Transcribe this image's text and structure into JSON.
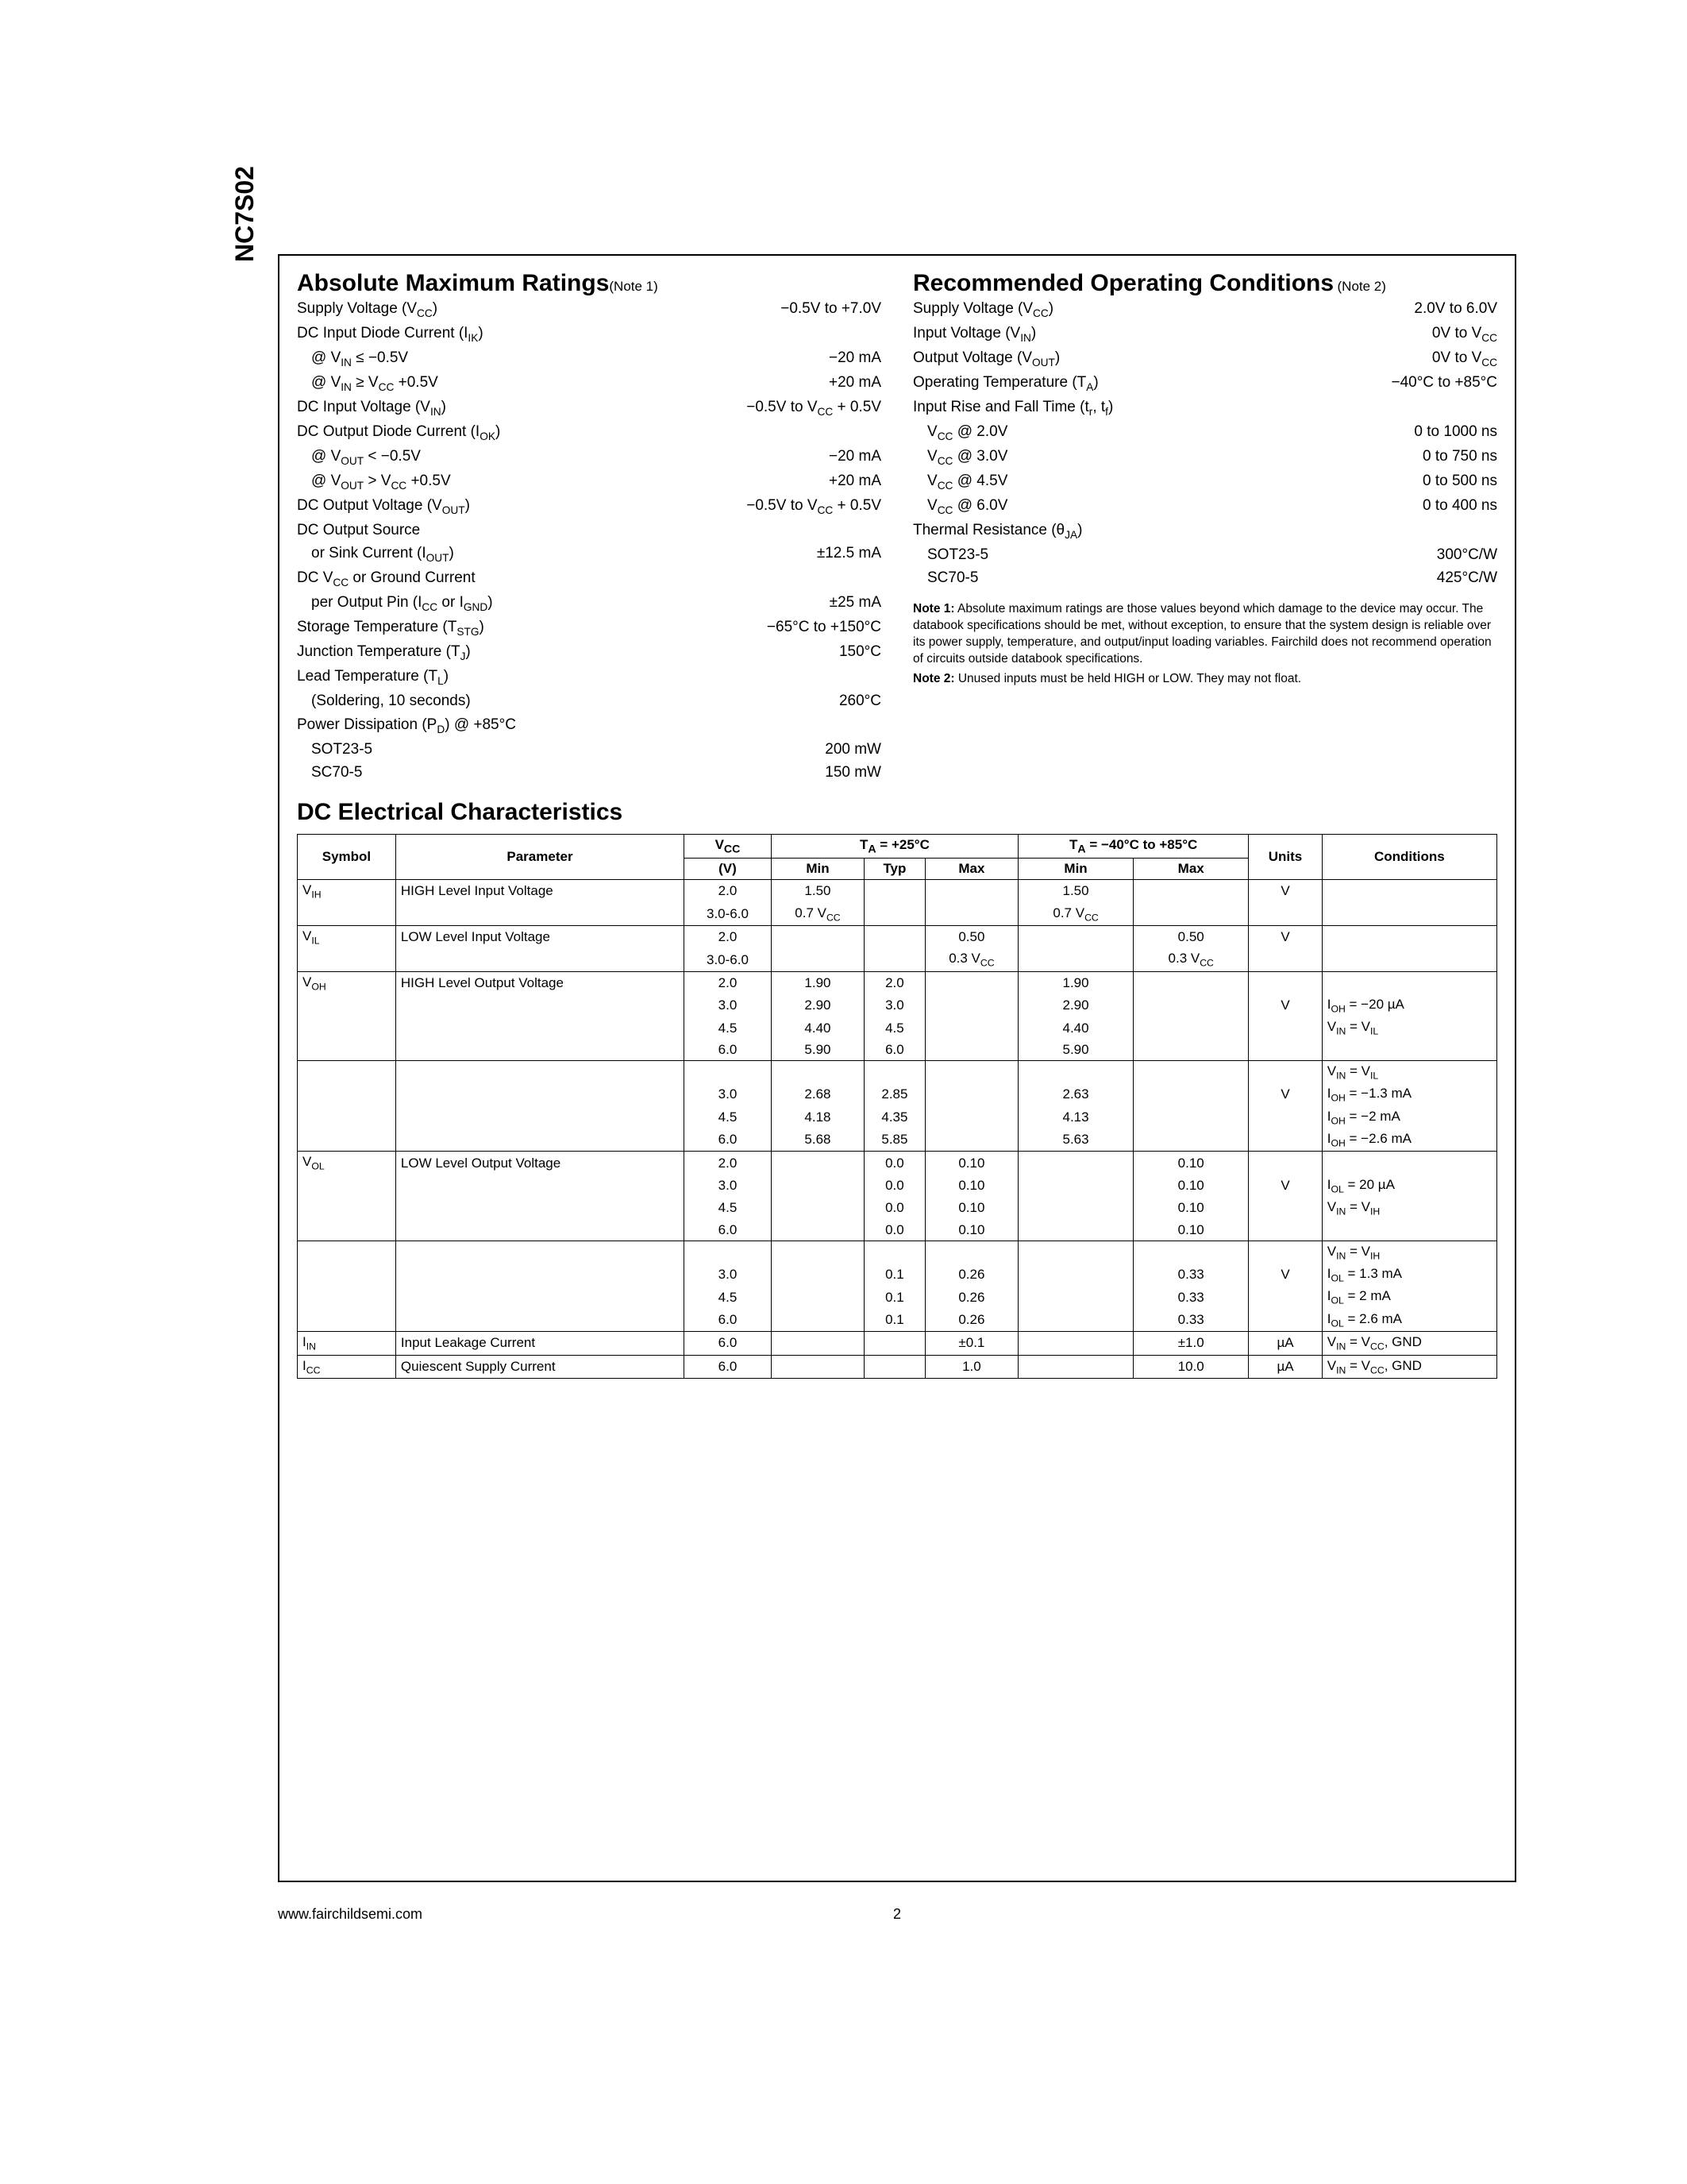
{
  "part_number": "NC7S02",
  "footer_url": "www.fairchildsemi.com",
  "page_number": "2",
  "abs_max": {
    "title": "Absolute Maximum Ratings",
    "note_ref": "(Note 1)",
    "rows": [
      {
        "label": "Supply Voltage (V<sub>CC</sub>)",
        "value": "−0.5V to +7.0V"
      },
      {
        "label": "DC Input Diode Current (I<sub>IK</sub>)",
        "value": ""
      },
      {
        "label": "@ V<sub>IN</sub> ≤ −0.5V",
        "value": "−20 mA",
        "indent": 1
      },
      {
        "label": "@ V<sub>IN</sub> ≥ V<sub>CC</sub> +0.5V",
        "value": "+20 mA",
        "indent": 1
      },
      {
        "label": "DC Input Voltage (V<sub>IN</sub>)",
        "value": "−0.5V to V<sub>CC</sub> + 0.5V"
      },
      {
        "label": "DC Output Diode Current (I<sub>OK</sub>)",
        "value": ""
      },
      {
        "label": "@ V<sub>OUT</sub> < −0.5V",
        "value": "−20 mA",
        "indent": 1
      },
      {
        "label": "@ V<sub>OUT</sub> > V<sub>CC</sub> +0.5V",
        "value": "+20 mA",
        "indent": 1
      },
      {
        "label": "DC Output Voltage (V<sub>OUT</sub>)",
        "value": "−0.5V to V<sub>CC</sub> + 0.5V"
      },
      {
        "label": "DC Output Source",
        "value": ""
      },
      {
        "label": "or Sink Current (I<sub>OUT</sub>)",
        "value": "±12.5 mA",
        "indent": 1
      },
      {
        "label": "DC V<sub>CC</sub> or Ground Current",
        "value": ""
      },
      {
        "label": "per Output Pin (I<sub>CC</sub> or I<sub>GND</sub>)",
        "value": "±25 mA",
        "indent": 1
      },
      {
        "label": "Storage Temperature (T<sub>STG</sub>)",
        "value": "−65°C to +150°C"
      },
      {
        "label": "Junction Temperature (T<sub>J</sub>)",
        "value": "150°C"
      },
      {
        "label": "Lead Temperature (T<sub>L</sub>)",
        "value": ""
      },
      {
        "label": "(Soldering, 10 seconds)",
        "value": "260°C",
        "indent": 1
      },
      {
        "label": "Power Dissipation (P<sub>D</sub>) @ +85°C",
        "value": ""
      },
      {
        "label": "SOT23-5",
        "value": "200 mW",
        "indent": 1
      },
      {
        "label": "SC70-5",
        "value": "150 mW",
        "indent": 1
      }
    ]
  },
  "rec_op": {
    "title": "Recommended Operating Conditions",
    "note_ref": "(Note 2)",
    "rows": [
      {
        "label": "Supply Voltage (V<sub>CC</sub>)",
        "value": "2.0V to 6.0V"
      },
      {
        "label": "Input Voltage (V<sub>IN</sub>)",
        "value": "0V to V<sub>CC</sub>"
      },
      {
        "label": "Output Voltage (V<sub>OUT</sub>)",
        "value": "0V to V<sub>CC</sub>"
      },
      {
        "label": "Operating Temperature (T<sub>A</sub>)",
        "value": "−40°C to +85°C"
      },
      {
        "label": "Input Rise and Fall Time (t<sub>r</sub>, t<sub>f</sub>)",
        "value": ""
      },
      {
        "label": "V<sub>CC</sub> @ 2.0V",
        "value": "0 to 1000 ns",
        "indent": 1
      },
      {
        "label": "V<sub>CC</sub> @ 3.0V",
        "value": "0 to 750 ns",
        "indent": 1
      },
      {
        "label": "V<sub>CC</sub> @ 4.5V",
        "value": "0 to 500 ns",
        "indent": 1
      },
      {
        "label": "V<sub>CC</sub> @ 6.0V",
        "value": "0 to 400 ns",
        "indent": 1
      },
      {
        "label": "Thermal Resistance (θ<sub>JA</sub>)",
        "value": ""
      },
      {
        "label": "SOT23-5",
        "value": "300°C/W",
        "indent": 1
      },
      {
        "label": "SC70-5",
        "value": "425°C/W",
        "indent": 1
      }
    ],
    "note1": "Note 1: Absolute maximum ratings are those values beyond which damage to the device may occur. The databook specifications should be met, without exception, to ensure that the system design is reliable over its power supply, temperature, and output/input loading variables. Fairchild does not recommend operation of circuits outside databook specifications.",
    "note2": "Note 2: Unused inputs must be held HIGH or LOW. They may not float."
  },
  "dc": {
    "title": "DC Electrical Characteristics",
    "headers": {
      "symbol": "Symbol",
      "parameter": "Parameter",
      "vcc": "V<sub>CC</sub>",
      "vcc_unit": "(V)",
      "ta25": "T<sub>A</sub> = +25°C",
      "ta_range": "T<sub>A</sub> = −40°C to +85°C",
      "min": "Min",
      "typ": "Typ",
      "max": "Max",
      "units": "Units",
      "conditions": "Conditions"
    },
    "rows": [
      {
        "sym": "V<sub>IH</sub>",
        "param": "HIGH Level Input Voltage",
        "vcc": "2.0",
        "min": "1.50",
        "typ": "",
        "max": "",
        "min2": "1.50",
        "max2": "",
        "unit": "V",
        "cond": "",
        "top": true
      },
      {
        "sym": "",
        "param": "",
        "vcc": "3.0-6.0",
        "min": "0.7 V<sub>CC</sub>",
        "typ": "",
        "max": "",
        "min2": "0.7 V<sub>CC</sub>",
        "max2": "",
        "unit": "",
        "cond": "",
        "bot": true
      },
      {
        "sym": "V<sub>IL</sub>",
        "param": "LOW Level Input Voltage",
        "vcc": "2.0",
        "min": "",
        "typ": "",
        "max": "0.50",
        "min2": "",
        "max2": "0.50",
        "unit": "V",
        "cond": "",
        "top": true
      },
      {
        "sym": "",
        "param": "",
        "vcc": "3.0-6.0",
        "min": "",
        "typ": "",
        "max": "0.3 V<sub>CC</sub>",
        "min2": "",
        "max2": "0.3 V<sub>CC</sub>",
        "unit": "",
        "cond": "",
        "bot": true
      },
      {
        "sym": "V<sub>OH</sub>",
        "param": "HIGH Level Output Voltage",
        "vcc": "2.0",
        "min": "1.90",
        "typ": "2.0",
        "max": "",
        "min2": "1.90",
        "max2": "",
        "unit": "",
        "cond": "",
        "top": true
      },
      {
        "sym": "",
        "param": "",
        "vcc": "3.0",
        "min": "2.90",
        "typ": "3.0",
        "max": "",
        "min2": "2.90",
        "max2": "",
        "unit": "V",
        "cond": "I<sub>OH</sub> = −20 µA",
        "mid": true
      },
      {
        "sym": "",
        "param": "",
        "vcc": "4.5",
        "min": "4.40",
        "typ": "4.5",
        "max": "",
        "min2": "4.40",
        "max2": "",
        "unit": "",
        "cond": "V<sub>IN</sub> = V<sub>IL</sub>",
        "mid": true
      },
      {
        "sym": "",
        "param": "",
        "vcc": "6.0",
        "min": "5.90",
        "typ": "6.0",
        "max": "",
        "min2": "5.90",
        "max2": "",
        "unit": "",
        "cond": "",
        "bot": true
      },
      {
        "sym": "",
        "param": "",
        "vcc": "",
        "min": "",
        "typ": "",
        "max": "",
        "min2": "",
        "max2": "",
        "unit": "",
        "cond": "V<sub>IN</sub> = V<sub>IL</sub>",
        "top": true
      },
      {
        "sym": "",
        "param": "",
        "vcc": "3.0",
        "min": "2.68",
        "typ": "2.85",
        "max": "",
        "min2": "2.63",
        "max2": "",
        "unit": "V",
        "cond": "I<sub>OH</sub> = −1.3 mA",
        "mid": true
      },
      {
        "sym": "",
        "param": "",
        "vcc": "4.5",
        "min": "4.18",
        "typ": "4.35",
        "max": "",
        "min2": "4.13",
        "max2": "",
        "unit": "",
        "cond": "I<sub>OH</sub> = −2 mA",
        "mid": true
      },
      {
        "sym": "",
        "param": "",
        "vcc": "6.0",
        "min": "5.68",
        "typ": "5.85",
        "max": "",
        "min2": "5.63",
        "max2": "",
        "unit": "",
        "cond": "I<sub>OH</sub> = −2.6 mA",
        "bot": true
      },
      {
        "sym": "V<sub>OL</sub>",
        "param": "LOW Level Output Voltage",
        "vcc": "2.0",
        "min": "",
        "typ": "0.0",
        "max": "0.10",
        "min2": "",
        "max2": "0.10",
        "unit": "",
        "cond": "",
        "top": true
      },
      {
        "sym": "",
        "param": "",
        "vcc": "3.0",
        "min": "",
        "typ": "0.0",
        "max": "0.10",
        "min2": "",
        "max2": "0.10",
        "unit": "V",
        "cond": "I<sub>OL</sub> = 20 µA",
        "mid": true
      },
      {
        "sym": "",
        "param": "",
        "vcc": "4.5",
        "min": "",
        "typ": "0.0",
        "max": "0.10",
        "min2": "",
        "max2": "0.10",
        "unit": "",
        "cond": "V<sub>IN</sub> = V<sub>IH</sub>",
        "mid": true
      },
      {
        "sym": "",
        "param": "",
        "vcc": "6.0",
        "min": "",
        "typ": "0.0",
        "max": "0.10",
        "min2": "",
        "max2": "0.10",
        "unit": "",
        "cond": "",
        "bot": true
      },
      {
        "sym": "",
        "param": "",
        "vcc": "",
        "min": "",
        "typ": "",
        "max": "",
        "min2": "",
        "max2": "",
        "unit": "",
        "cond": "V<sub>IN</sub> = V<sub>IH</sub>",
        "top": true
      },
      {
        "sym": "",
        "param": "",
        "vcc": "3.0",
        "min": "",
        "typ": "0.1",
        "max": "0.26",
        "min2": "",
        "max2": "0.33",
        "unit": "V",
        "cond": "I<sub>OL</sub> = 1.3 mA",
        "mid": true
      },
      {
        "sym": "",
        "param": "",
        "vcc": "4.5",
        "min": "",
        "typ": "0.1",
        "max": "0.26",
        "min2": "",
        "max2": "0.33",
        "unit": "",
        "cond": "I<sub>OL</sub> = 2 mA",
        "mid": true
      },
      {
        "sym": "",
        "param": "",
        "vcc": "6.0",
        "min": "",
        "typ": "0.1",
        "max": "0.26",
        "min2": "",
        "max2": "0.33",
        "unit": "",
        "cond": "I<sub>OL</sub> = 2.6 mA",
        "bot": true
      },
      {
        "sym": "I<sub>IN</sub>",
        "param": "Input Leakage Current",
        "vcc": "6.0",
        "min": "",
        "typ": "",
        "max": "±0.1",
        "min2": "",
        "max2": "±1.0",
        "unit": "µA",
        "cond": "V<sub>IN</sub> = V<sub>CC</sub>, GND",
        "single": true
      },
      {
        "sym": "I<sub>CC</sub>",
        "param": "Quiescent Supply Current",
        "vcc": "6.0",
        "min": "",
        "typ": "",
        "max": "1.0",
        "min2": "",
        "max2": "10.0",
        "unit": "µA",
        "cond": "V<sub>IN</sub> = V<sub>CC</sub>, GND",
        "single": true
      }
    ]
  }
}
